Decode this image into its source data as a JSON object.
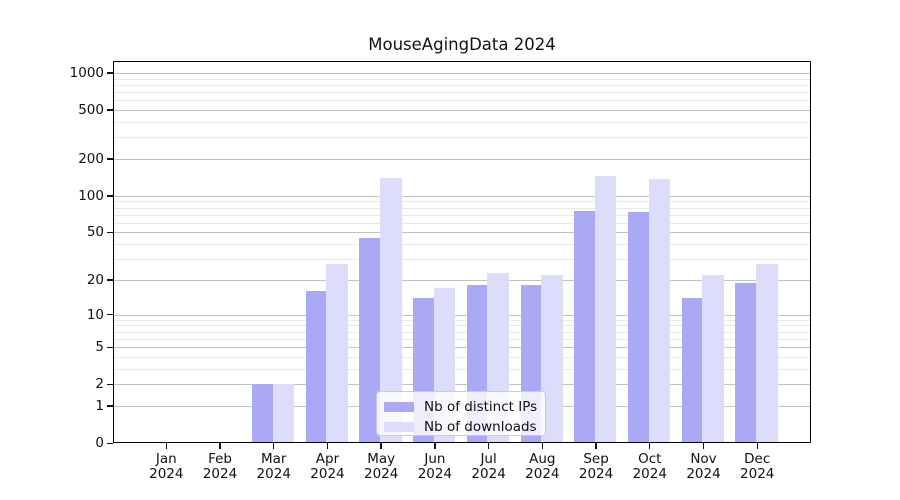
{
  "title": "MouseAgingData 2024",
  "colors": {
    "ips": "#a9a9f6",
    "downloads": "#dcdcfb",
    "grid_major": "#c2c2c2",
    "grid_minor": "#e9e9e9",
    "axis": "#000000",
    "legend_border": "#cccccc",
    "legend_bg": "rgba(255,255,255,0.8)"
  },
  "chart_data": {
    "type": "bar",
    "title": "MouseAgingData 2024",
    "categories": [
      "Jan 2024",
      "Feb 2024",
      "Mar 2024",
      "Apr 2024",
      "May 2024",
      "Jun 2024",
      "Jul 2024",
      "Aug 2024",
      "Sep 2024",
      "Oct 2024",
      "Nov 2024",
      "Dec 2024"
    ],
    "month_labels": [
      "Jan",
      "Feb",
      "Mar",
      "Apr",
      "May",
      "Jun",
      "Jul",
      "Aug",
      "Sep",
      "Oct",
      "Nov",
      "Dec"
    ],
    "year_label": "2024",
    "series": [
      {
        "name": "Nb of distinct IPs",
        "color": "#a9a9f6",
        "values": [
          0,
          0,
          2,
          16,
          45,
          14,
          18,
          18,
          75,
          74,
          14,
          19
        ]
      },
      {
        "name": "Nb of downloads",
        "color": "#dcdcfb",
        "values": [
          0,
          0,
          2,
          27,
          140,
          17,
          23,
          22,
          145,
          137,
          22,
          27
        ]
      }
    ],
    "xlabel": "",
    "ylabel": "",
    "y_scale": "log1p",
    "y_ticks": [
      0,
      1,
      2,
      5,
      10,
      20,
      50,
      100,
      200,
      500,
      1000
    ],
    "y_minor_gridlines": [
      3,
      4,
      6,
      7,
      8,
      9,
      30,
      40,
      60,
      70,
      80,
      90,
      300,
      400,
      600,
      700,
      800,
      900
    ],
    "ylim": [
      0,
      1270
    ],
    "grid": true,
    "legend_position": "lower center"
  }
}
